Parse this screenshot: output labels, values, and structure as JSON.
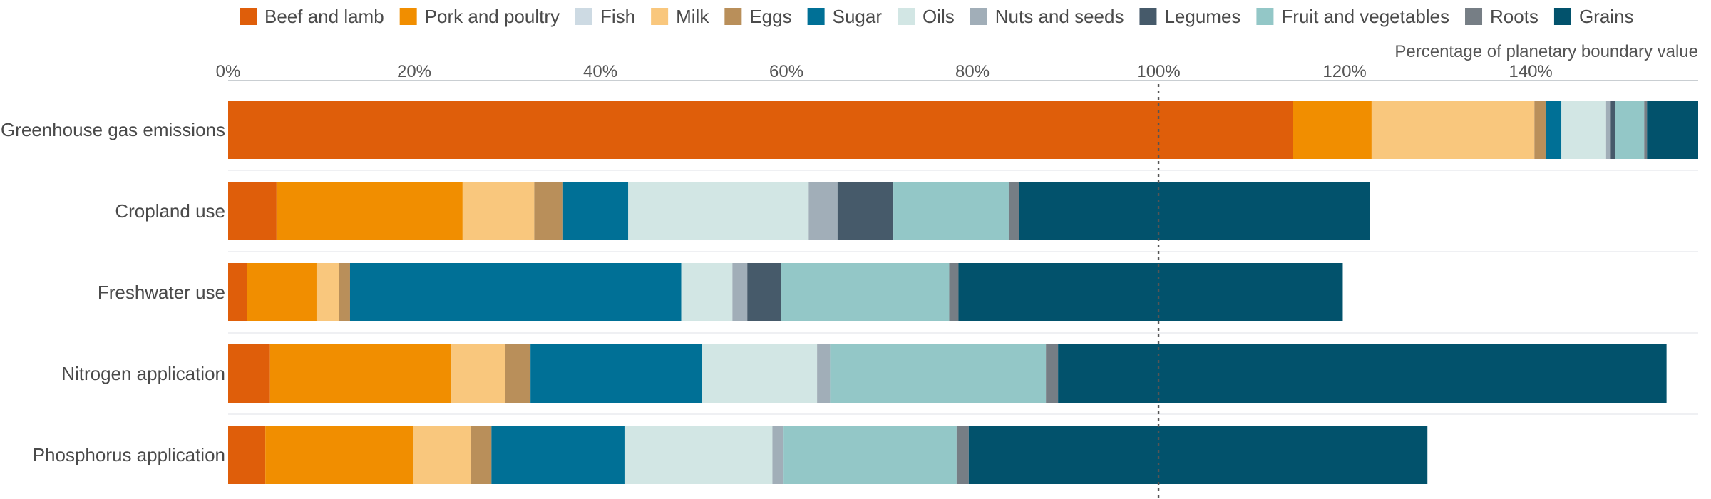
{
  "chart_data": {
    "type": "bar",
    "orientation": "horizontal",
    "stacked": true,
    "xlabel": "Percentage of planetary boundary value",
    "xlim": [
      0,
      158
    ],
    "x_ticks": [
      {
        "value": 0,
        "label": "0%"
      },
      {
        "value": 20,
        "label": "20%"
      },
      {
        "value": 40,
        "label": "40%"
      },
      {
        "value": 60,
        "label": "60%"
      },
      {
        "value": 80,
        "label": "80%"
      },
      {
        "value": 100,
        "label": "100%"
      },
      {
        "value": 120,
        "label": "120%"
      },
      {
        "value": 140,
        "label": "140%"
      }
    ],
    "reference_line": {
      "value": 100,
      "style": "dotted"
    },
    "grid": "horizontal-separators",
    "legend_placement": "top",
    "categories": [
      "Greenhouse gas emissions",
      "Cropland use",
      "Freshwater use",
      "Nitrogen application",
      "Phosphorus application"
    ],
    "series": [
      {
        "name": "Beef and lamb",
        "color": "#df5e0a",
        "values": [
          114.4,
          5.2,
          2.0,
          4.5,
          4.0
        ]
      },
      {
        "name": "Pork and poultry",
        "color": "#f18e00",
        "values": [
          8.5,
          20.0,
          7.5,
          19.5,
          15.9
        ]
      },
      {
        "name": "Fish",
        "color": "#cddae3",
        "values": [
          0.0,
          0.0,
          0.0,
          0.0,
          0.0
        ]
      },
      {
        "name": "Milk",
        "color": "#f9c77d",
        "values": [
          17.5,
          7.7,
          2.4,
          5.8,
          6.2
        ]
      },
      {
        "name": "Eggs",
        "color": "#b98f5a",
        "values": [
          1.2,
          3.1,
          1.2,
          2.7,
          2.2
        ]
      },
      {
        "name": "Sugar",
        "color": "#007096",
        "values": [
          1.7,
          7.0,
          35.6,
          18.4,
          14.3
        ]
      },
      {
        "name": "Oils",
        "color": "#d2e6e4",
        "values": [
          4.8,
          19.4,
          5.5,
          12.4,
          15.9
        ]
      },
      {
        "name": "Nuts and seeds",
        "color": "#a1aeb8",
        "values": [
          0.5,
          3.1,
          1.6,
          1.4,
          1.2
        ]
      },
      {
        "name": "Legumes",
        "color": "#465a6a",
        "values": [
          0.5,
          6.0,
          3.6,
          0.0,
          0.0
        ]
      },
      {
        "name": "Fruit and vegetables",
        "color": "#93c7c7",
        "values": [
          3.1,
          12.4,
          18.1,
          23.2,
          18.6
        ]
      },
      {
        "name": "Roots",
        "color": "#767e85",
        "values": [
          0.3,
          1.1,
          1.0,
          1.3,
          1.3
        ]
      },
      {
        "name": "Grains",
        "color": "#02526c",
        "values": [
          5.5,
          37.7,
          41.3,
          65.4,
          49.3
        ]
      }
    ]
  }
}
